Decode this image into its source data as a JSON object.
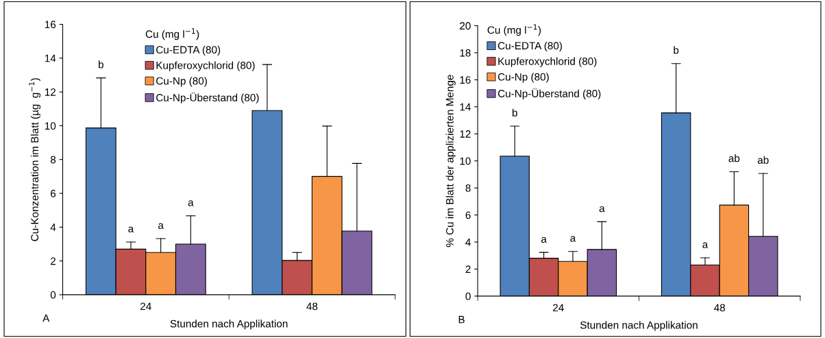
{
  "chart_data": [
    {
      "type": "bar",
      "xlabel": "Stunden nach Applikation",
      "ylabel": "Cu-Konzentration im Blatt (µg  g$^{−1}$)",
      "legend_title": "Cu (mg l$^{−1}$)",
      "legend": "top",
      "categories": [
        "24",
        "48"
      ],
      "ylim": [
        0,
        16
      ],
      "yticks": [
        0,
        2,
        4,
        6,
        8,
        10,
        12,
        14,
        16
      ],
      "grid": false,
      "series": [
        {
          "name": "Cu-EDTA (80)",
          "color": "#4f81bd",
          "values": [
            9.87,
            10.9
          ],
          "errors": [
            [
              9.87,
              12.83
            ],
            [
              10.9,
              13.62
            ]
          ]
        },
        {
          "name": "Kupferoxychlorid (80)",
          "color": "#c0504d",
          "values": [
            2.7,
            2.03
          ],
          "errors": [
            [
              2.7,
              3.12
            ],
            [
              2.03,
              2.5
            ]
          ]
        },
        {
          "name": "Cu-Np (80)",
          "color": "#f79646",
          "values": [
            2.5,
            7.0
          ],
          "errors": [
            [
              2.5,
              3.32
            ],
            [
              7.0,
              9.98
            ]
          ]
        },
        {
          "name": "Cu-Np-Überstand (80)",
          "color": "#8064a2",
          "values": [
            3.0,
            3.77
          ],
          "errors": [
            [
              3.0,
              4.67
            ],
            [
              3.77,
              7.77
            ]
          ]
        }
      ],
      "annotations": [
        "b",
        "a",
        "a",
        "a",
        "A"
      ]
    },
    {
      "type": "bar",
      "xlabel": "Stunden nach Applikation",
      "ylabel": "% Cu im Blatt der applizierten Menge",
      "legend_title": "Cu (mg l$^{−1}$)",
      "legend": "top left",
      "categories": [
        "24",
        "48"
      ],
      "ylim": [
        0,
        20
      ],
      "yticks": [
        0,
        2,
        4,
        6,
        8,
        10,
        12,
        14,
        16,
        18,
        20
      ],
      "grid": false,
      "series": [
        {
          "name": "Cu-EDTA (80)",
          "color": "#4f81bd",
          "values": [
            10.35,
            13.55
          ],
          "errors": [
            [
              10.35,
              12.57
            ],
            [
              13.55,
              17.2
            ]
          ]
        },
        {
          "name": "Kupferoxychlorid (80)",
          "color": "#c0504d",
          "values": [
            2.8,
            2.3
          ],
          "errors": [
            [
              2.8,
              3.23
            ],
            [
              2.3,
              2.83
            ]
          ]
        },
        {
          "name": "Cu-Np (80)",
          "color": "#f79646",
          "values": [
            2.57,
            6.73
          ],
          "errors": [
            [
              2.57,
              3.3
            ],
            [
              6.73,
              9.2
            ]
          ]
        },
        {
          "name": "Cu-Np-Überstand (80)",
          "color": "#8064a2",
          "values": [
            3.45,
            4.42
          ],
          "errors": [
            [
              3.45,
              5.5
            ],
            [
              4.42,
              9.07
            ]
          ]
        }
      ],
      "annotations": [
        "b",
        "a",
        "a",
        "a",
        "b",
        "a",
        "ab",
        "ab",
        "B"
      ]
    }
  ]
}
